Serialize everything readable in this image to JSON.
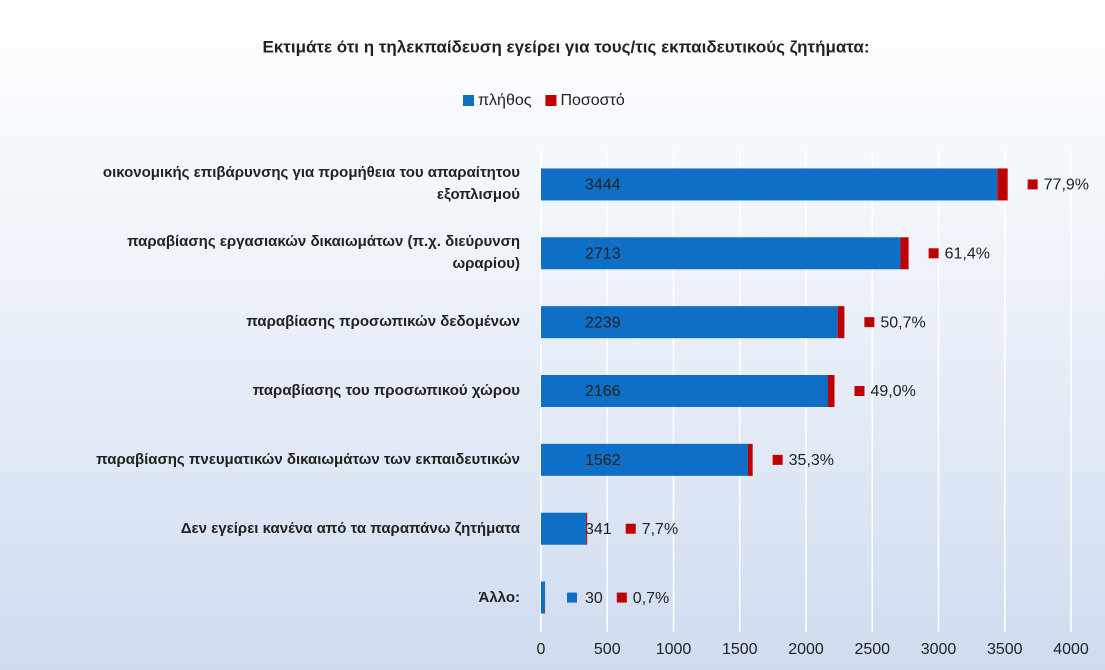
{
  "chart_data": {
    "type": "bar",
    "orientation": "horizontal",
    "title": "Εκτιμάτε ότι η τηλεκπαίδευση εγείρει για τους/τις εκπαιδευτικούς ζητήματα:",
    "categories": [
      "οικονομικής επιβάρυνσης για προμήθεια του απαραίτητου εξοπλισμού",
      "παραβίασης εργασιακών δικαιωμάτων (π.χ. διεύρυνση ωραρίου)",
      "παραβίασης προσωπικών δεδομένων",
      "παραβίασης του προσωπικού χώρου",
      "παραβίασης πνευματικών δικαιωμάτων των εκπαιδευτικών",
      "Δεν εγείρει κανένα από τα παραπάνω ζητήματα",
      "Άλλο:"
    ],
    "series": [
      {
        "name": "πλήθος",
        "color": "#0f6fc6",
        "values": [
          3444,
          2713,
          2239,
          2166,
          1562,
          341,
          30
        ]
      },
      {
        "name": "Ποσοστό",
        "color": "#c00000",
        "values": [
          77.9,
          61.4,
          50.7,
          49.0,
          35.3,
          7.7,
          0.7
        ],
        "value_labels": [
          "77,9%",
          "61,4%",
          "50,7%",
          "49,0%",
          "35,3%",
          "7,7%",
          "0,7%"
        ]
      }
    ],
    "xlim": [
      0,
      4000
    ],
    "xticks": [
      0,
      500,
      1000,
      1500,
      2000,
      2500,
      3000,
      3500,
      4000
    ],
    "stacked": true,
    "grid": true,
    "legend": "top"
  }
}
